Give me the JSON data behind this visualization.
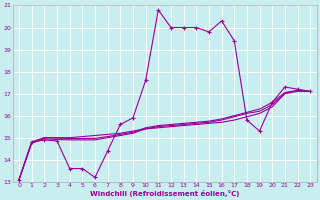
{
  "xlabel": "Windchill (Refroidissement éolien,°C)",
  "bg_color": "#c8eef0",
  "grid_color": "#ffffff",
  "line_color": "#990099",
  "xlim": [
    -0.5,
    23.5
  ],
  "ylim": [
    13,
    21
  ],
  "xticks": [
    0,
    1,
    2,
    3,
    4,
    5,
    6,
    7,
    8,
    9,
    10,
    11,
    12,
    13,
    14,
    15,
    16,
    17,
    18,
    19,
    20,
    21,
    22,
    23
  ],
  "yticks": [
    13,
    14,
    15,
    16,
    17,
    18,
    19,
    20,
    21
  ],
  "line1_x": [
    0,
    1,
    2,
    3,
    4,
    5,
    6,
    7,
    8,
    9,
    10,
    11,
    12,
    13,
    14,
    15,
    16,
    17,
    18,
    19,
    20,
    21,
    22,
    23
  ],
  "line1_y": [
    13.1,
    14.8,
    14.9,
    14.85,
    13.6,
    13.6,
    13.2,
    14.4,
    15.6,
    15.9,
    17.6,
    20.8,
    20.0,
    20.0,
    20.0,
    19.8,
    20.3,
    19.4,
    15.8,
    15.3,
    16.6,
    17.3,
    17.2,
    17.1
  ],
  "line2_x": [
    0,
    1,
    2,
    3,
    4,
    5,
    6,
    7,
    8,
    9,
    10,
    11,
    12,
    13,
    14,
    15,
    16,
    17,
    18,
    19,
    20,
    21,
    22,
    23
  ],
  "line2_y": [
    13.1,
    14.8,
    15.0,
    15.0,
    15.0,
    15.05,
    15.1,
    15.15,
    15.2,
    15.3,
    15.4,
    15.45,
    15.5,
    15.55,
    15.6,
    15.65,
    15.7,
    15.8,
    15.95,
    16.1,
    16.4,
    17.0,
    17.15,
    17.1
  ],
  "line3_x": [
    0,
    1,
    2,
    3,
    4,
    5,
    6,
    7,
    8,
    9,
    10,
    11,
    12,
    13,
    14,
    15,
    16,
    17,
    18,
    19,
    20,
    21,
    22,
    23
  ],
  "line3_y": [
    13.1,
    14.8,
    15.0,
    14.98,
    14.96,
    14.96,
    14.97,
    15.05,
    15.15,
    15.25,
    15.45,
    15.55,
    15.6,
    15.65,
    15.7,
    15.75,
    15.85,
    16.0,
    16.15,
    16.3,
    16.6,
    17.05,
    17.15,
    17.1
  ],
  "line4_x": [
    0,
    1,
    2,
    3,
    4,
    5,
    6,
    7,
    8,
    9,
    10,
    11,
    12,
    13,
    14,
    15,
    16,
    17,
    18,
    19,
    20,
    21,
    22,
    23
  ],
  "line4_y": [
    13.1,
    14.75,
    14.95,
    14.92,
    14.9,
    14.9,
    14.9,
    15.0,
    15.1,
    15.2,
    15.4,
    15.5,
    15.55,
    15.6,
    15.65,
    15.7,
    15.8,
    15.95,
    16.1,
    16.2,
    16.5,
    17.0,
    17.1,
    17.1
  ]
}
